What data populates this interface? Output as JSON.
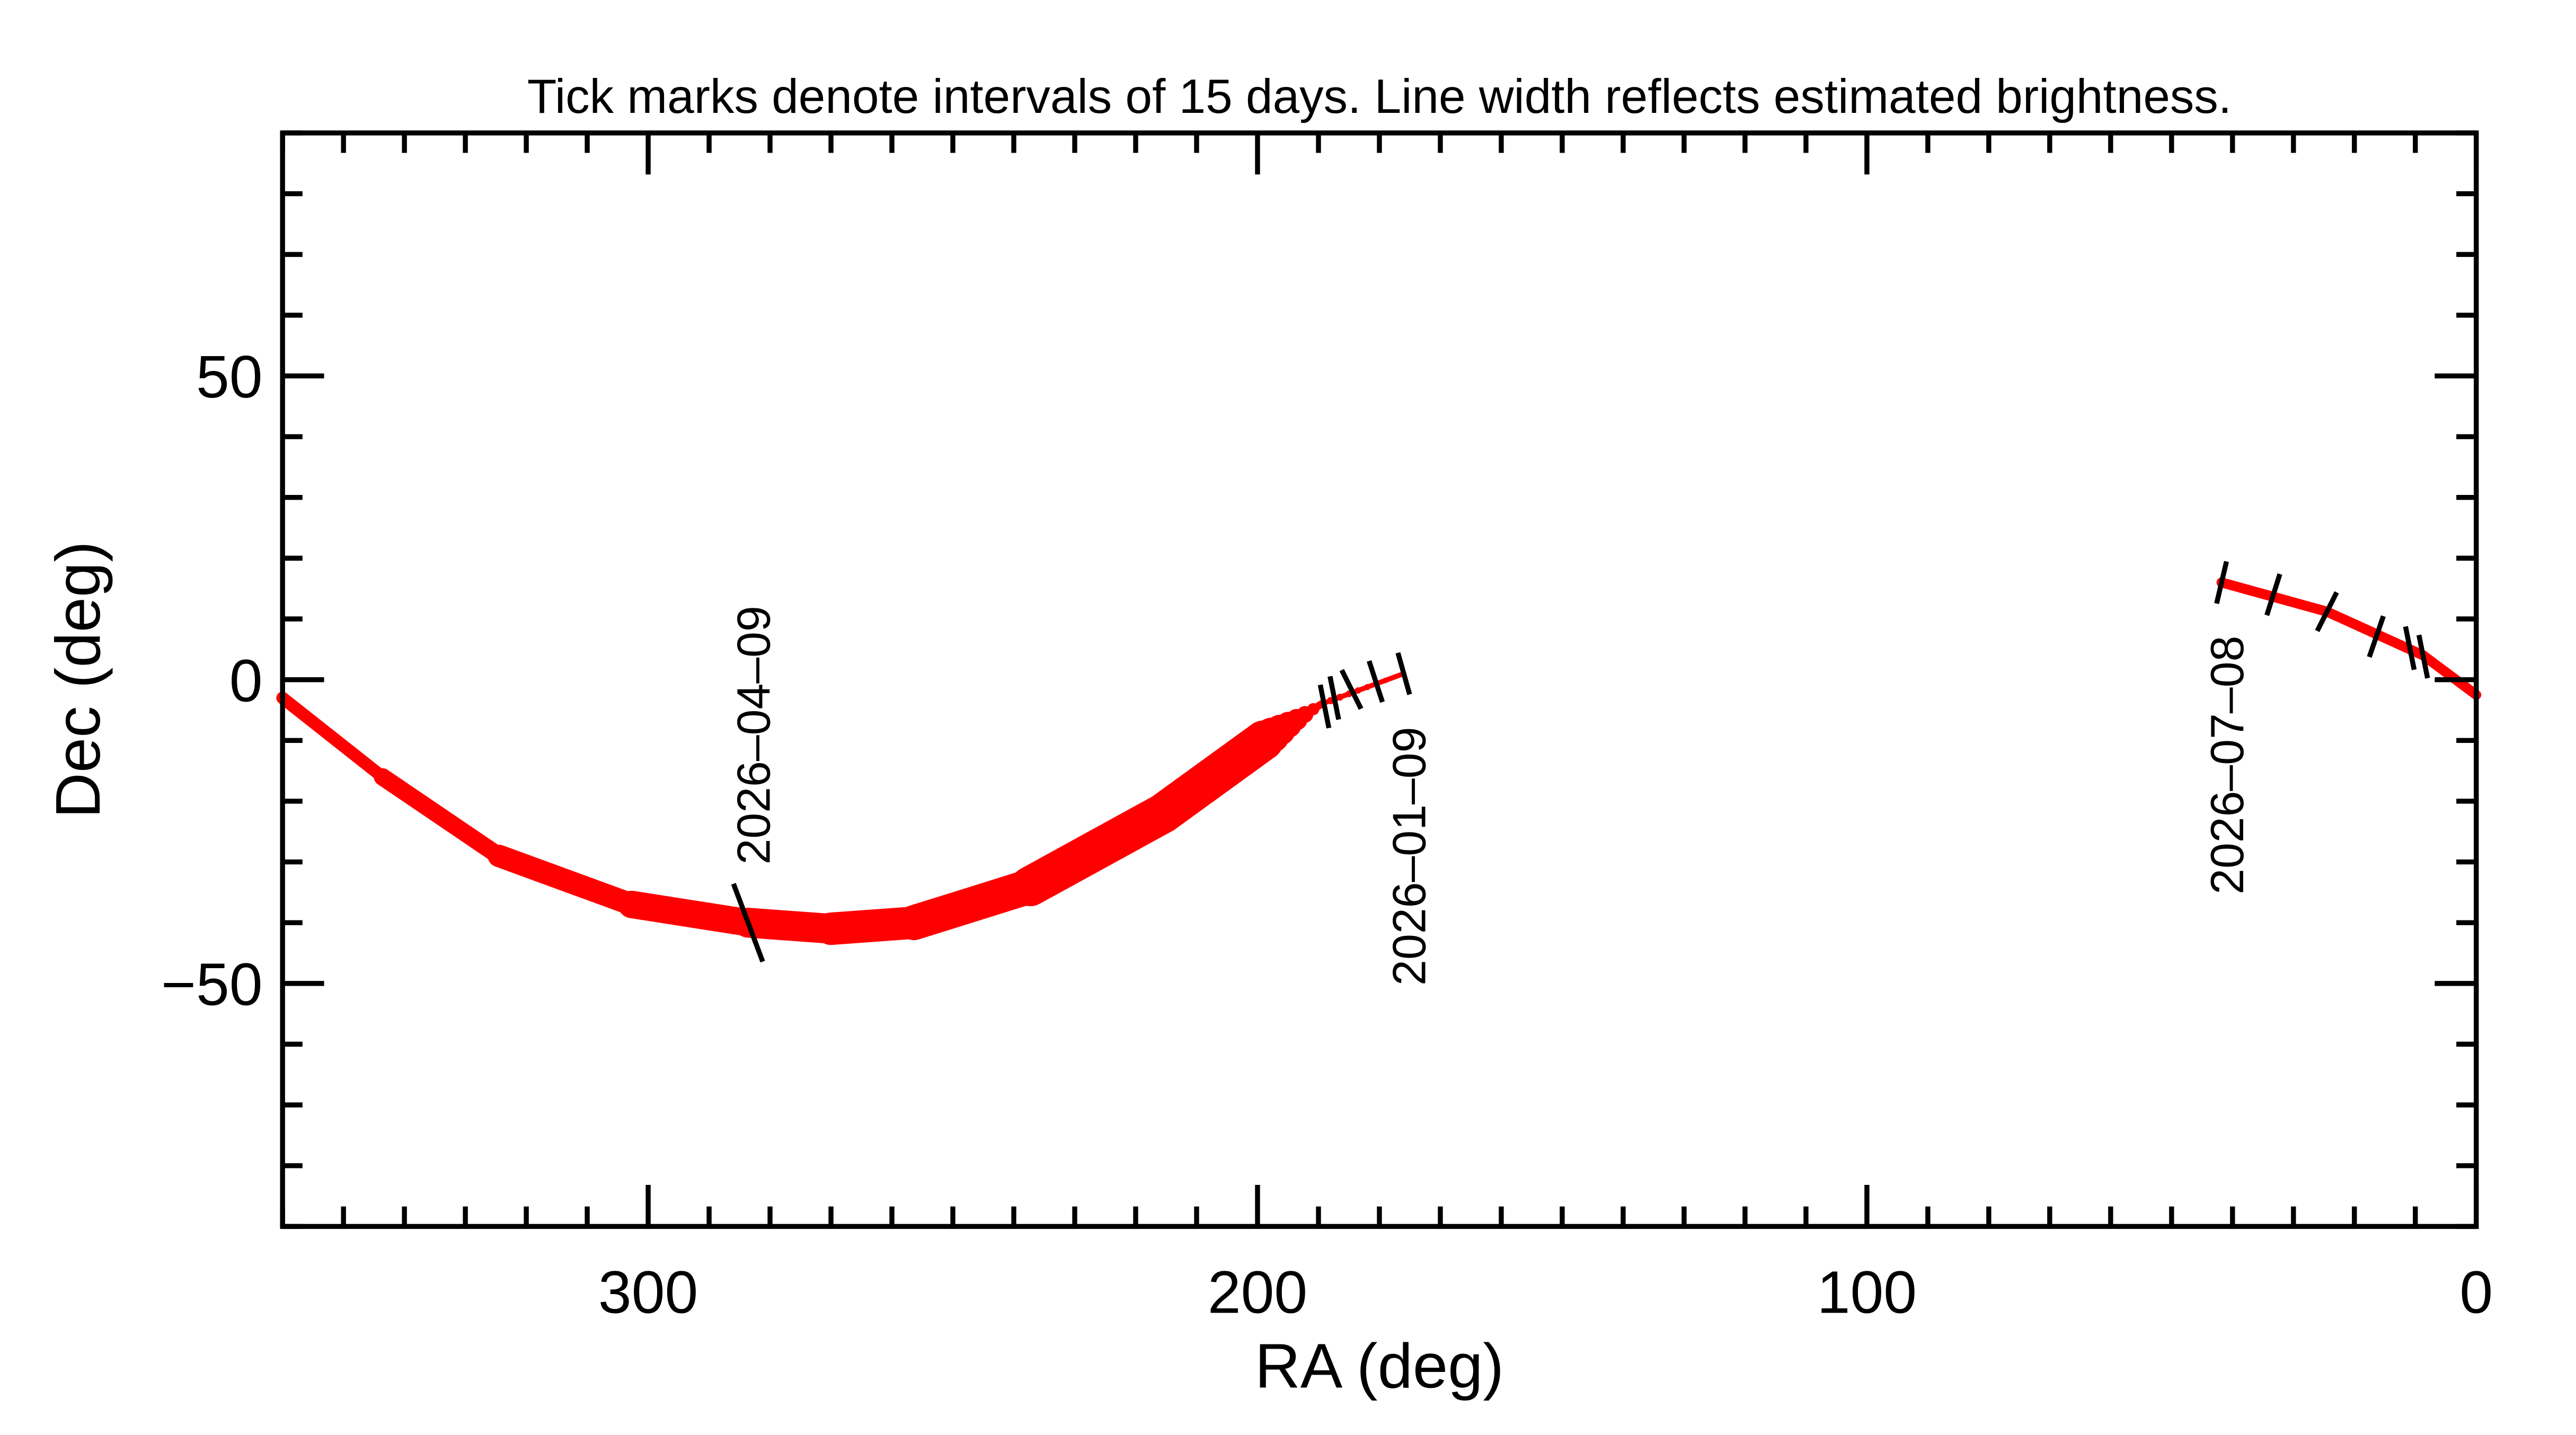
{
  "chart_data": {
    "type": "line",
    "title": "Tick marks denote intervals of 15 days.  Line width reflects estimated brightness.",
    "xlabel": "RA (deg)",
    "ylabel": "Dec (deg)",
    "xlim": [
      360,
      0
    ],
    "ylim": [
      -90,
      90
    ],
    "x_reversed": true,
    "xticks": [
      300,
      200,
      100,
      0
    ],
    "xtick_labels": [
      "300",
      "200",
      "100",
      "0"
    ],
    "yticks": [
      50,
      0,
      -50
    ],
    "ytick_labels": [
      "50",
      "0",
      "−50"
    ],
    "grid": false,
    "line_color": "#ff0000",
    "tick_color": "#000000",
    "series": [
      {
        "points": [
          {
            "ra": 176,
            "dec": 1,
            "weight": 1
          },
          {
            "ra": 189.5,
            "dec": -4,
            "weight": 1.5
          },
          {
            "ra": 199,
            "dec": -10,
            "weight": 8
          },
          {
            "ra": 215.5,
            "dec": -22,
            "weight": 8
          },
          {
            "ra": 237.3,
            "dec": -34,
            "weight": 7
          },
          {
            "ra": 256.4,
            "dec": -40,
            "weight": 6.5
          },
          {
            "ra": 270,
            "dec": -41,
            "weight": 6
          },
          {
            "ra": 283.6,
            "dec": -40,
            "weight": 5.5
          },
          {
            "ra": 302.7,
            "dec": -37,
            "weight": 4.5
          },
          {
            "ra": 324.5,
            "dec": -29,
            "weight": 3.5
          },
          {
            "ra": 343.6,
            "dec": -16,
            "weight": 2.5
          },
          {
            "ra": 360,
            "dec": -3,
            "weight": 2
          }
        ]
      },
      {
        "points": [
          {
            "ra": 41.8,
            "dec": 16,
            "weight": 2
          },
          {
            "ra": 24.5,
            "dec": 11.2,
            "weight": 2
          },
          {
            "ra": 8.7,
            "dec": 4,
            "weight": 2
          },
          {
            "ra": 0,
            "dec": -2.5,
            "weight": 2
          }
        ]
      }
    ],
    "date_ticks": [
      {
        "ra": 176,
        "dec": 1,
        "label": "2026–01–09"
      },
      {
        "ra": 180.6,
        "dec": -0.3
      },
      {
        "ra": 184.6,
        "dec": -1.6
      },
      {
        "ra": 187.4,
        "dec": -3
      },
      {
        "ra": 189,
        "dec": -4.4
      },
      {
        "ra": 283.6,
        "dec": -40,
        "label": "2026–04–09"
      },
      {
        "ra": 41.8,
        "dec": 16,
        "label": "2026–07–08"
      },
      {
        "ra": 33.3,
        "dec": 14
      },
      {
        "ra": 24.5,
        "dec": 11.2
      },
      {
        "ra": 16.4,
        "dec": 7.1
      },
      {
        "ra": 10.9,
        "dec": 5.2
      },
      {
        "ra": 8.7,
        "dec": 3.8
      }
    ]
  }
}
